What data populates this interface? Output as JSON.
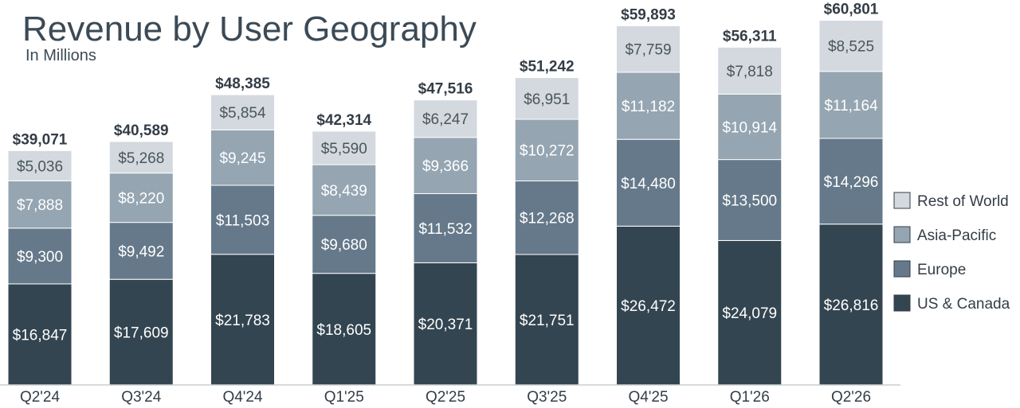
{
  "chart_data": {
    "type": "bar",
    "stacked": true,
    "title": "Revenue by User Geography",
    "subtitle": "In Millions",
    "xlabel": "",
    "ylabel": "",
    "ylim": [
      0,
      62000
    ],
    "grid": false,
    "legend_position": "right",
    "categories": [
      "Q2'24",
      "Q3'24",
      "Q4'24",
      "Q1'25",
      "Q2'25",
      "Q3'25",
      "Q4'25",
      "Q1'26",
      "Q2'26"
    ],
    "series": [
      {
        "name": "US & Canada",
        "color": "#334550",
        "text_color": "#ffffff",
        "values": [
          16847,
          17609,
          21783,
          18605,
          20371,
          21751,
          26472,
          24079,
          26816
        ],
        "labels": [
          "$16,847",
          "$17,609",
          "$21,783",
          "$18,605",
          "$20,371",
          "$21,751",
          "$26,472",
          "$24,079",
          "$26,816"
        ]
      },
      {
        "name": "Europe",
        "color": "#65798a",
        "text_color": "#ffffff",
        "values": [
          9300,
          9492,
          11503,
          9680,
          11532,
          12268,
          14480,
          13500,
          14296
        ],
        "labels": [
          "$9,300",
          "$9,492",
          "$11,503",
          "$9,680",
          "$11,532",
          "$12,268",
          "$14,480",
          "$13,500",
          "$14,296"
        ]
      },
      {
        "name": "Asia-Pacific",
        "color": "#95a5b2",
        "text_color": "#ffffff",
        "values": [
          7888,
          8220,
          9245,
          8439,
          9366,
          10272,
          11182,
          10914,
          11164
        ],
        "labels": [
          "$7,888",
          "$8,220",
          "$9,245",
          "$8,439",
          "$9,366",
          "$10,272",
          "$11,182",
          "$10,914",
          "$11,164"
        ]
      },
      {
        "name": "Rest of World",
        "color": "#d3d9de",
        "text_color": "#4a5560",
        "values": [
          5036,
          5268,
          5854,
          5590,
          6247,
          6951,
          7759,
          7818,
          8525
        ],
        "labels": [
          "$5,036",
          "$5,268",
          "$5,854",
          "$5,590",
          "$6,247",
          "$6,951",
          "$7,759",
          "$7,818",
          "$8,525"
        ]
      }
    ],
    "totals": [
      39071,
      40589,
      48385,
      42314,
      47516,
      51242,
      59893,
      56311,
      60801
    ],
    "total_labels": [
      "$39,071",
      "$40,589",
      "$48,385",
      "$42,314",
      "$47,516",
      "$51,242",
      "$59,893",
      "$56,311",
      "$60,801"
    ],
    "legend_order": [
      "Rest of World",
      "Asia-Pacific",
      "Europe",
      "US & Canada"
    ]
  }
}
